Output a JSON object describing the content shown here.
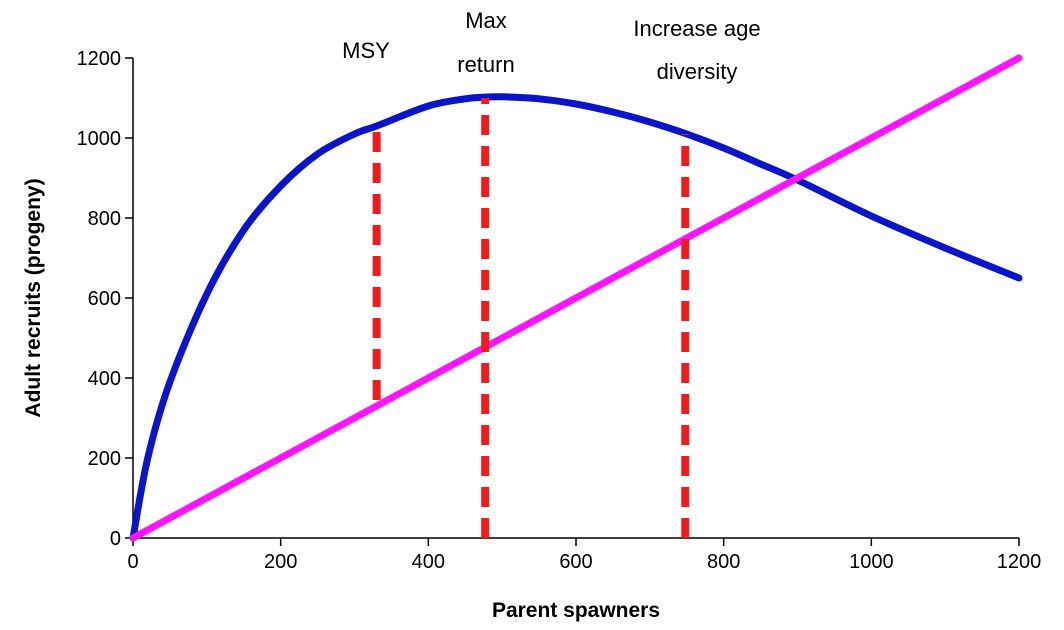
{
  "chart_data": {
    "type": "line",
    "title": "",
    "xlabel": "Parent spawners",
    "ylabel": "Adult recruits (progeny)",
    "xlim": [
      0,
      1200
    ],
    "ylim": [
      0,
      1200
    ],
    "x_ticks": [
      "0",
      "200",
      "400",
      "600",
      "800",
      "1000",
      "1200"
    ],
    "y_ticks": [
      "0",
      "200",
      "400",
      "600",
      "800",
      "1000",
      "1200"
    ],
    "grid": false,
    "legend": "none",
    "series": [
      {
        "color": "#0a14c8",
        "x": [
          0,
          20,
          50,
          100,
          150,
          200,
          250,
          300,
          330,
          400,
          450,
          475,
          500,
          550,
          600,
          650,
          700,
          750,
          800,
          850,
          900,
          1000,
          1100,
          1200
        ],
        "y": [
          0,
          200,
          390,
          610,
          770,
          880,
          960,
          1010,
          1030,
          1080,
          1098,
          1102,
          1103,
          1098,
          1085,
          1065,
          1040,
          1010,
          975,
          935,
          895,
          805,
          725,
          650
        ]
      },
      {
        "color": "#ff14ff",
        "x": [
          0,
          1200
        ],
        "y": [
          0,
          1200
        ]
      }
    ],
    "annotations": [
      {
        "label_lines": [
          "MSY"
        ],
        "x": 330,
        "y_from": 345,
        "y_to": 1020
      },
      {
        "label_lines": [
          "Max",
          "return"
        ],
        "x": 477,
        "y_from": 0,
        "y_to": 1100
      },
      {
        "label_lines": [
          "Increase age",
          "diversity"
        ],
        "x": 748,
        "y_from": 0,
        "y_to": 1010
      }
    ],
    "colors": {
      "annotation_line": "#ee1c1c",
      "axis": "#000000"
    }
  }
}
